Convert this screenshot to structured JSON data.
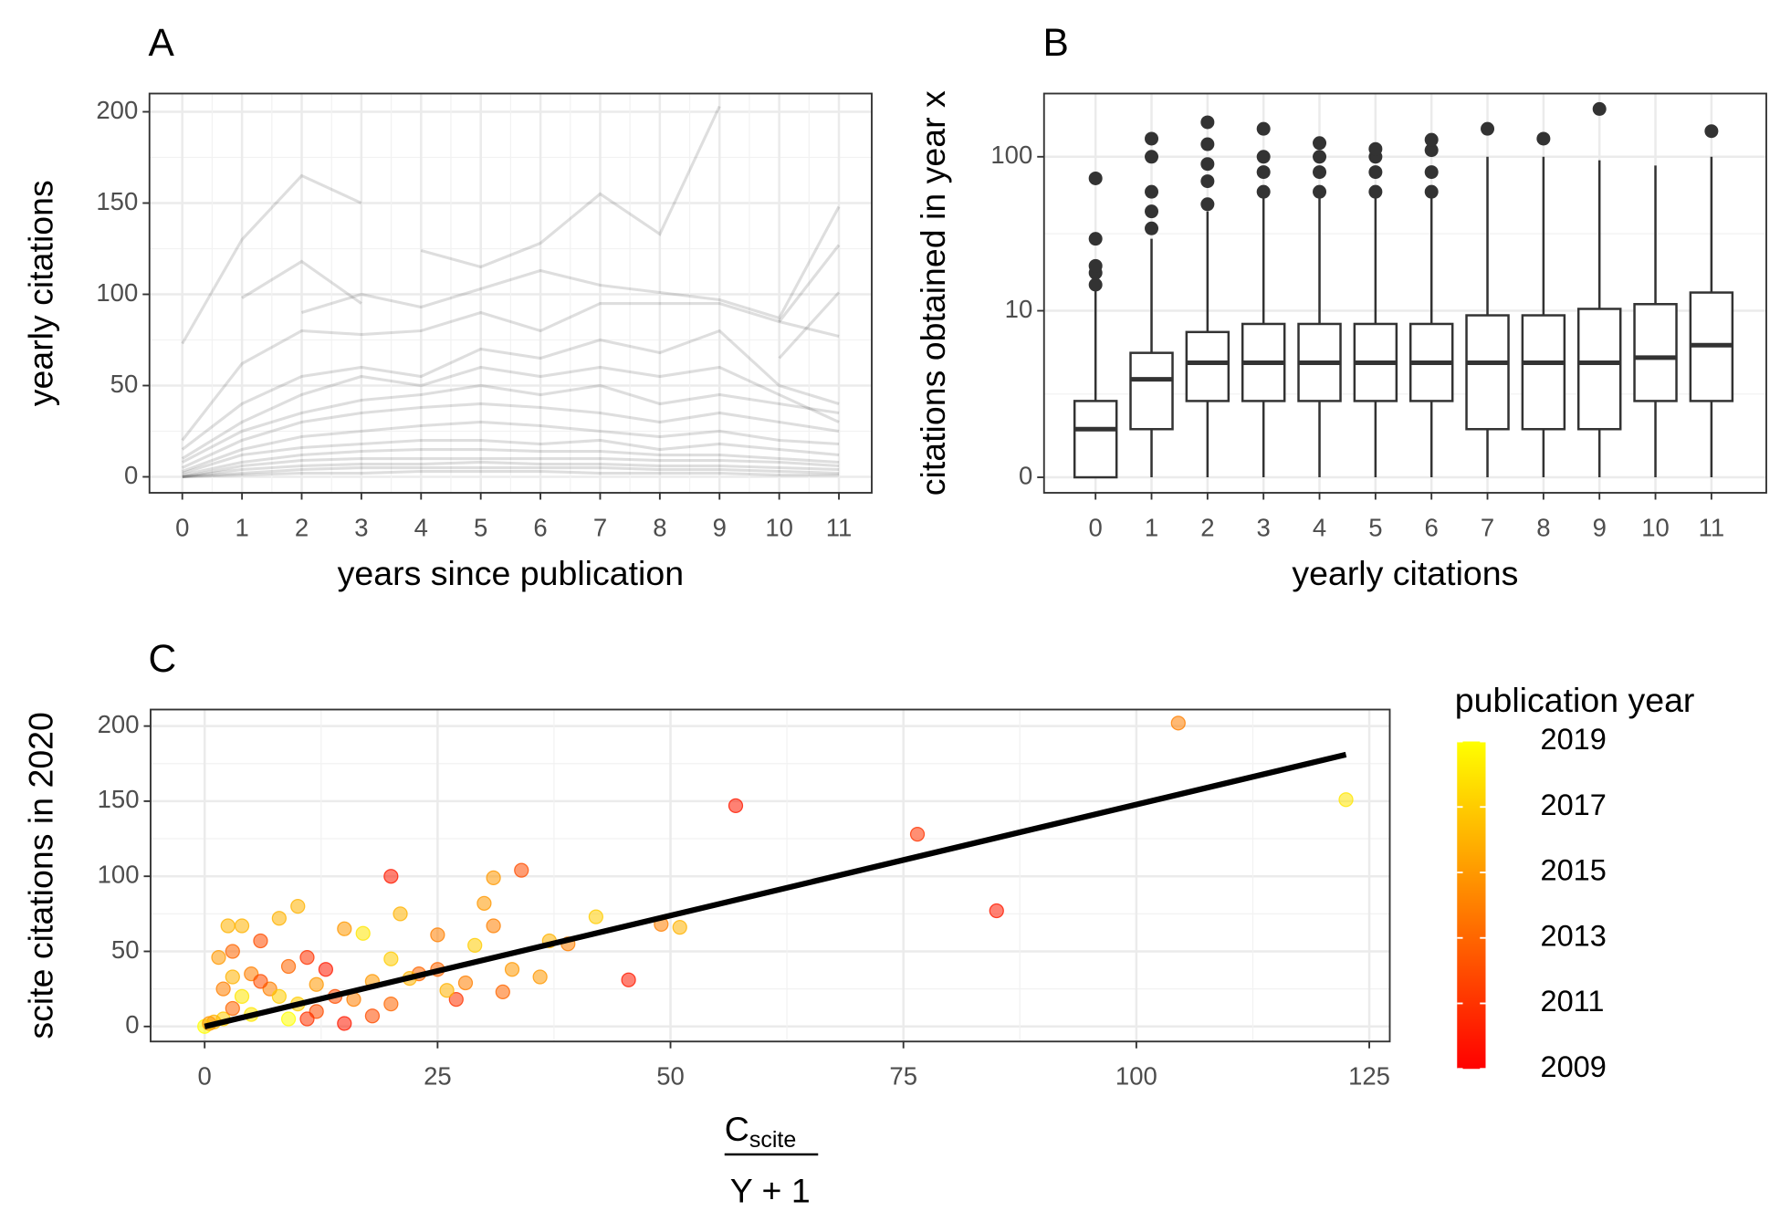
{
  "chart_data": [
    {
      "type": "line",
      "title": "A",
      "x_label": "years since publication",
      "y_label": "yearly citations",
      "color": "#000000",
      "grid": true,
      "x": [
        0,
        1,
        2,
        3,
        4,
        5,
        6,
        7,
        8,
        9,
        10,
        11
      ],
      "xlim": [
        -0.55,
        11.55
      ],
      "xticks": [
        0,
        1,
        2,
        3,
        4,
        5,
        6,
        7,
        8,
        9,
        10,
        11
      ],
      "ylim": [
        -8.75,
        210
      ],
      "yticks": [
        0,
        50,
        100,
        150,
        200
      ],
      "series": [
        {
          "values": [
            73,
            130,
            165,
            150,
            null,
            null,
            null,
            null,
            null,
            null,
            null,
            null
          ]
        },
        {
          "values": [
            null,
            null,
            null,
            null,
            124,
            115,
            128,
            155,
            133,
            203,
            null,
            null
          ]
        },
        {
          "values": [
            null,
            98,
            118,
            95,
            null,
            null,
            null,
            null,
            null,
            null,
            null,
            null
          ]
        },
        {
          "values": [
            null,
            null,
            90,
            100,
            93,
            103,
            113,
            105,
            101,
            97,
            87,
            148
          ]
        },
        {
          "values": [
            null,
            null,
            null,
            null,
            null,
            null,
            null,
            null,
            null,
            null,
            85,
            127
          ]
        },
        {
          "values": [
            null,
            null,
            null,
            null,
            null,
            null,
            null,
            null,
            null,
            null,
            65,
            101
          ]
        },
        {
          "values": [
            20,
            62,
            80,
            78,
            80,
            90,
            80,
            95,
            95,
            95,
            85,
            77
          ]
        },
        {
          "values": [
            15,
            40,
            55,
            60,
            55,
            70,
            65,
            75,
            68,
            80,
            50,
            40
          ]
        },
        {
          "values": [
            10,
            30,
            45,
            55,
            50,
            60,
            55,
            60,
            55,
            60,
            45,
            30
          ]
        },
        {
          "values": [
            8,
            25,
            35,
            42,
            45,
            50,
            45,
            50,
            40,
            45,
            40,
            35
          ]
        },
        {
          "values": [
            5,
            20,
            30,
            35,
            38,
            40,
            38,
            35,
            30,
            35,
            30,
            25
          ]
        },
        {
          "values": [
            3,
            15,
            22,
            25,
            28,
            30,
            28,
            25,
            22,
            25,
            20,
            18
          ]
        },
        {
          "values": [
            2,
            12,
            16,
            18,
            20,
            20,
            18,
            20,
            15,
            18,
            15,
            12
          ]
        },
        {
          "values": [
            1,
            8,
            12,
            14,
            15,
            15,
            14,
            14,
            12,
            12,
            10,
            8
          ]
        },
        {
          "values": [
            0,
            6,
            9,
            10,
            10,
            10,
            10,
            10,
            9,
            9,
            8,
            6
          ]
        },
        {
          "values": [
            0,
            4,
            6,
            7,
            7,
            8,
            7,
            7,
            6,
            6,
            5,
            4
          ]
        },
        {
          "values": [
            0,
            2,
            4,
            5,
            5,
            5,
            5,
            5,
            4,
            4,
            3,
            2
          ]
        },
        {
          "values": [
            0,
            1,
            2,
            2,
            3,
            3,
            3,
            2,
            2,
            2,
            1,
            1
          ]
        }
      ]
    },
    {
      "type": "box",
      "title": "B",
      "x_label": "yearly citations",
      "y_label": "citations obtained in year x",
      "y_scale": "log10(x+1)",
      "grid": true,
      "categories": [
        "0",
        "1",
        "2",
        "3",
        "4",
        "5",
        "6",
        "7",
        "8",
        "9",
        "10",
        "11"
      ],
      "ylim": [
        -0.2,
        250
      ],
      "yticks": [
        0,
        10,
        100
      ],
      "q1": [
        0,
        1,
        2,
        2,
        2,
        2,
        2,
        1,
        1,
        1,
        2,
        2
      ],
      "median": [
        1,
        3.1,
        4.2,
        4.2,
        4.2,
        4.2,
        4.2,
        4.2,
        4.2,
        4.2,
        4.6,
        5.7
      ],
      "q3": [
        2,
        5,
        7.1,
        8.1,
        8.1,
        8.1,
        8.1,
        9.3,
        9.3,
        10.3,
        11.1,
        13.3
      ],
      "whisker_low": [
        0,
        0,
        0,
        0,
        0,
        0,
        0,
        0,
        0,
        0,
        0,
        0
      ],
      "whisker_high": [
        14,
        30,
        45,
        55,
        55,
        55,
        55,
        100,
        100,
        95,
        88,
        100
      ],
      "outliers": [
        [
          15,
          18,
          20,
          30,
          73
        ],
        [
          35,
          45,
          60,
          100,
          130
        ],
        [
          50,
          70,
          90,
          120,
          165
        ],
        [
          60,
          80,
          100,
          150
        ],
        [
          60,
          80,
          100,
          122
        ],
        [
          60,
          80,
          100,
          112
        ],
        [
          60,
          80,
          110,
          128
        ],
        [
          150
        ],
        [
          130
        ],
        [
          200
        ],
        [],
        [
          145
        ]
      ]
    },
    {
      "type": "scatter",
      "title": "C",
      "y_label": "scite citations in 2020",
      "x_label": {
        "numerator": "C",
        "numerator_sub": "scite",
        "denominator": "Y + 1"
      },
      "grid": true,
      "xlim": [
        -5.8,
        127.2
      ],
      "xticks": [
        0,
        25,
        50,
        75,
        100,
        125
      ],
      "ylim": [
        -10,
        211
      ],
      "yticks": [
        0,
        50,
        100,
        150,
        200
      ],
      "x": [
        104.5,
        57,
        122.5,
        76.5,
        85,
        34,
        20,
        31,
        30,
        10,
        21,
        42,
        8,
        31,
        51,
        49,
        2.5,
        4,
        25,
        17,
        15,
        37,
        39,
        29,
        45.5,
        36,
        32,
        27,
        6,
        1.5,
        3,
        11,
        20,
        13,
        9,
        5,
        3,
        23,
        18,
        25,
        28,
        22,
        14,
        7,
        10,
        12,
        5,
        2,
        1,
        0,
        0.5,
        3,
        8,
        16,
        12,
        6,
        4,
        15,
        11,
        20,
        2,
        18,
        26,
        33,
        9
      ],
      "values": [
        202,
        147,
        151,
        128,
        77,
        104,
        100,
        99,
        82,
        80,
        75,
        73,
        72,
        67,
        66,
        68,
        67,
        67,
        61,
        62,
        65,
        57,
        55,
        54,
        31,
        33,
        23,
        18,
        57,
        46,
        50,
        46,
        45,
        38,
        40,
        35,
        33,
        35,
        30,
        38,
        29,
        32,
        20,
        25,
        15,
        10,
        8,
        5,
        3,
        0,
        2,
        12,
        20,
        18,
        28,
        30,
        20,
        2,
        5,
        15,
        25,
        7,
        24,
        38,
        5
      ],
      "color_values": [
        2014,
        2010,
        2018,
        2011,
        2010,
        2012,
        2010,
        2015,
        2015,
        2016,
        2016,
        2017,
        2016,
        2014,
        2016,
        2014,
        2016,
        2016,
        2014,
        2018,
        2015,
        2016,
        2014,
        2017,
        2010,
        2015,
        2013,
        2011,
        2012,
        2015,
        2013,
        2011,
        2017,
        2010,
        2013,
        2014,
        2016,
        2013,
        2015,
        2013,
        2014,
        2016,
        2012,
        2014,
        2017,
        2012,
        2018,
        2017,
        2016,
        2019,
        2015,
        2013,
        2017,
        2014,
        2015,
        2012,
        2018,
        2010,
        2011,
        2013,
        2014,
        2012,
        2016,
        2015,
        2019
      ],
      "fit": {
        "x": [
          0,
          122.5
        ],
        "values": [
          0,
          181
        ],
        "color": "#000000"
      },
      "colorbar": {
        "title": "publication year",
        "range": [
          2009,
          2019
        ],
        "ticks": [
          2009,
          2011,
          2013,
          2015,
          2017,
          2019
        ],
        "colors": [
          "#ff0000",
          "#ffff00"
        ]
      }
    }
  ]
}
